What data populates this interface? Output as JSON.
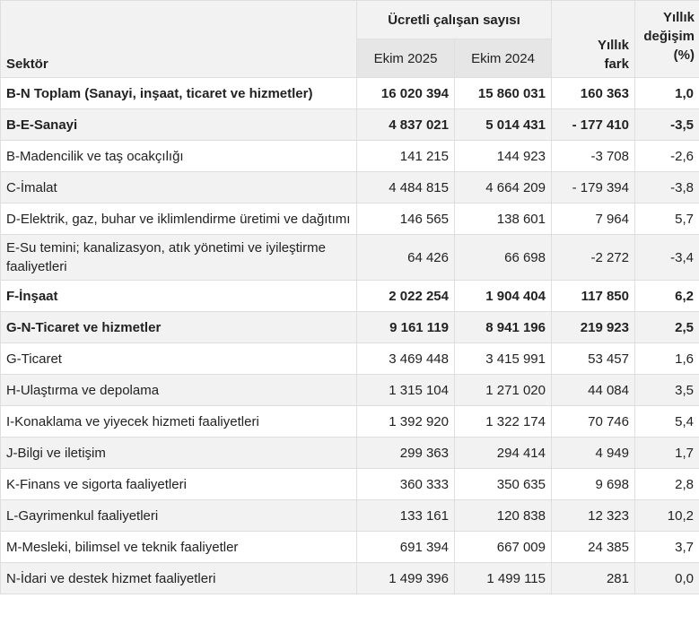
{
  "table": {
    "header": {
      "sector": "Sektör",
      "group": "Ücretli çalışan sayısı",
      "col_2025": "Ekim 2025",
      "col_2024": "Ekim 2024",
      "diff": "Yıllık fark",
      "change": "Yıllık değişim (%)"
    },
    "rows": [
      {
        "bold": true,
        "cells": [
          "B-N Toplam (Sanayi, inşaat, ticaret ve hizmetler)",
          "16 020 394",
          "15 860 031",
          "160 363",
          "1,0"
        ]
      },
      {
        "bold": true,
        "cells": [
          "B-E-Sanayi",
          "4 837 021",
          "5 014 431",
          "- 177 410",
          "-3,5"
        ]
      },
      {
        "bold": false,
        "cells": [
          "B-Madencilik ve taş ocakçılığı",
          "141 215",
          "144 923",
          "-3 708",
          "-2,6"
        ]
      },
      {
        "bold": false,
        "cells": [
          "C-İmalat",
          "4 484 815",
          "4 664 209",
          "- 179 394",
          "-3,8"
        ]
      },
      {
        "bold": false,
        "cells": [
          "D-Elektrik, gaz, buhar ve iklimlendirme üretimi ve dağıtımı",
          "146 565",
          "138 601",
          "7 964",
          "5,7"
        ]
      },
      {
        "bold": false,
        "cells": [
          "E-Su temini; kanalizasyon, atık yönetimi ve iyileştirme faaliyetleri",
          "64 426",
          "66 698",
          "-2 272",
          "-3,4"
        ]
      },
      {
        "bold": true,
        "cells": [
          "F-İnşaat",
          "2 022 254",
          "1 904 404",
          "117 850",
          "6,2"
        ]
      },
      {
        "bold": true,
        "cells": [
          "G-N-Ticaret ve hizmetler",
          "9 161 119",
          "8 941 196",
          "219 923",
          "2,5"
        ]
      },
      {
        "bold": false,
        "cells": [
          "G-Ticaret",
          "3 469 448",
          "3 415 991",
          "53 457",
          "1,6"
        ]
      },
      {
        "bold": false,
        "cells": [
          "H-Ulaştırma ve depolama",
          "1 315 104",
          "1 271 020",
          "44 084",
          "3,5"
        ]
      },
      {
        "bold": false,
        "cells": [
          "I-Konaklama ve yiyecek hizmeti faaliyetleri",
          "1 392 920",
          "1 322 174",
          "70 746",
          "5,4"
        ]
      },
      {
        "bold": false,
        "cells": [
          "J-Bilgi ve iletişim",
          "299 363",
          "294 414",
          "4 949",
          "1,7"
        ]
      },
      {
        "bold": false,
        "cells": [
          "K-Finans ve sigorta faaliyetleri",
          "360 333",
          "350 635",
          "9 698",
          "2,8"
        ]
      },
      {
        "bold": false,
        "cells": [
          "L-Gayrimenkul faaliyetleri",
          "133 161",
          "120 838",
          "12 323",
          "10,2"
        ]
      },
      {
        "bold": false,
        "cells": [
          "M-Mesleki, bilimsel ve teknik faaliyetler",
          "691 394",
          "667 009",
          "24 385",
          "3,7"
        ]
      },
      {
        "bold": false,
        "cells": [
          "N-İdari ve destek hizmet faaliyetleri",
          "1 499 396",
          "1 499 115",
          "281",
          "0,0"
        ]
      }
    ]
  }
}
